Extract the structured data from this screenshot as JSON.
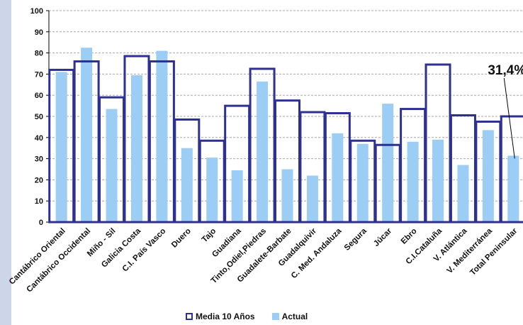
{
  "chart_data": {
    "type": "bar",
    "title": "",
    "xlabel": "",
    "ylabel": "",
    "ylim": [
      0,
      100
    ],
    "yticks": [
      0,
      10,
      20,
      30,
      40,
      50,
      60,
      70,
      80,
      90,
      100
    ],
    "grid": "horizontal dashed",
    "legend_position": "bottom-center",
    "categories": [
      "Cantábrico Oriental",
      "Cantábrico Occidental",
      "Miño - Sil",
      "Galicia Costa",
      "C.I. País Vasco",
      "Duero",
      "Tajo",
      "Guadiana",
      "Tinto,Odiel,Piedras",
      "Guadalete-Barbate",
      "Guadalquivir",
      "C. Med. Andaluza",
      "Segura",
      "Júcar",
      "Ebro",
      "C.I.Cataluña",
      "V. Atlántica",
      "V. Mediterránea",
      "Total Peninsular"
    ],
    "series": [
      {
        "name": "Media 10 Años",
        "style": "outline",
        "color": "#2e3192",
        "values": [
          72,
          76,
          59,
          78.5,
          76,
          48.5,
          38.5,
          55,
          72.5,
          57.5,
          52,
          51.5,
          38.5,
          36.5,
          53.5,
          74.5,
          50.5,
          47.5,
          50
        ]
      },
      {
        "name": "Actual",
        "style": "fill",
        "color": "#9ccdf5",
        "values": [
          71,
          82.5,
          53.5,
          69.5,
          81,
          35,
          30.5,
          24.5,
          66.5,
          25,
          22,
          42,
          37,
          56,
          38,
          39,
          27,
          43.5,
          31.4
        ]
      }
    ],
    "annotations": [
      {
        "text": "31,4%",
        "category": "Total Peninsular",
        "series": "Actual"
      }
    ]
  }
}
